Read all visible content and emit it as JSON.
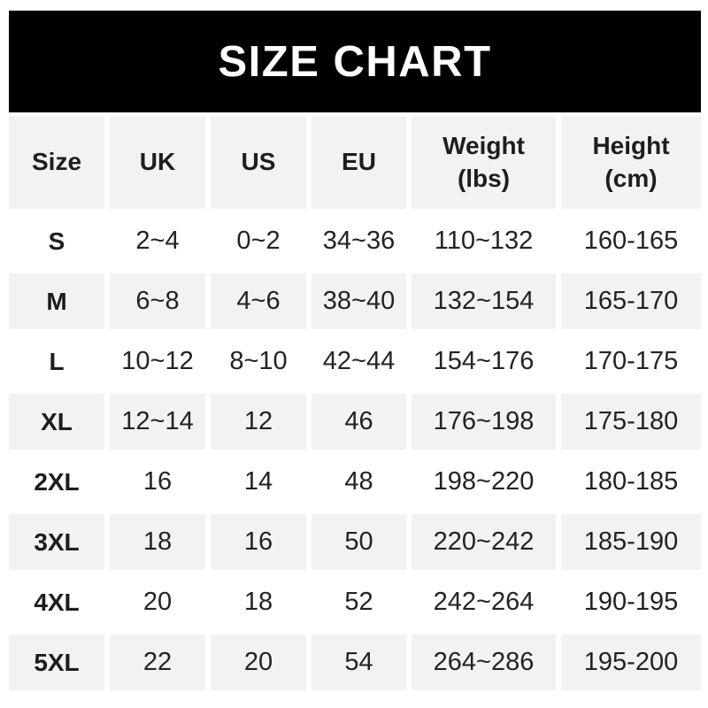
{
  "title": "SIZE CHART",
  "colors": {
    "banner_bg": "#000000",
    "banner_text": "#ffffff",
    "cell_bg_gray": "#f2f2f2",
    "cell_bg_white": "#ffffff",
    "text": "#232323"
  },
  "table": {
    "headers": [
      "Size",
      "UK",
      "US",
      "EU",
      "Weight\n(lbs)",
      "Height\n(cm)"
    ],
    "rows": [
      {
        "cells": [
          "S",
          "2~4",
          "0~2",
          "34~36",
          "110~132",
          "160-165"
        ]
      },
      {
        "cells": [
          "M",
          "6~8",
          "4~6",
          "38~40",
          "132~154",
          "165-170"
        ]
      },
      {
        "cells": [
          "L",
          "10~12",
          "8~10",
          "42~44",
          "154~176",
          "170-175"
        ]
      },
      {
        "cells": [
          "XL",
          "12~14",
          "12",
          "46",
          "176~198",
          "175-180"
        ]
      },
      {
        "cells": [
          "2XL",
          "16",
          "14",
          "48",
          "198~220",
          "180-185"
        ]
      },
      {
        "cells": [
          "3XL",
          "18",
          "16",
          "50",
          "220~242",
          "185-190"
        ]
      },
      {
        "cells": [
          "4XL",
          "20",
          "18",
          "52",
          "242~264",
          "190-195"
        ]
      },
      {
        "cells": [
          "5XL",
          "22",
          "20",
          "54",
          "264~286",
          "195-200"
        ]
      }
    ]
  },
  "chart_data": {
    "type": "table",
    "title": "SIZE CHART",
    "columns": [
      "Size",
      "UK",
      "US",
      "EU",
      "Weight (lbs)",
      "Height (cm)"
    ],
    "rows": [
      [
        "S",
        "2~4",
        "0~2",
        "34~36",
        "110~132",
        "160-165"
      ],
      [
        "M",
        "6~8",
        "4~6",
        "38~40",
        "132~154",
        "165-170"
      ],
      [
        "L",
        "10~12",
        "8~10",
        "42~44",
        "154~176",
        "170-175"
      ],
      [
        "XL",
        "12~14",
        "12",
        "46",
        "176~198",
        "175-180"
      ],
      [
        "2XL",
        "16",
        "14",
        "48",
        "198~220",
        "180-185"
      ],
      [
        "3XL",
        "18",
        "16",
        "50",
        "220~242",
        "185-190"
      ],
      [
        "4XL",
        "20",
        "18",
        "52",
        "242~264",
        "190-195"
      ],
      [
        "5XL",
        "22",
        "20",
        "54",
        "264~286",
        "195-200"
      ]
    ]
  }
}
